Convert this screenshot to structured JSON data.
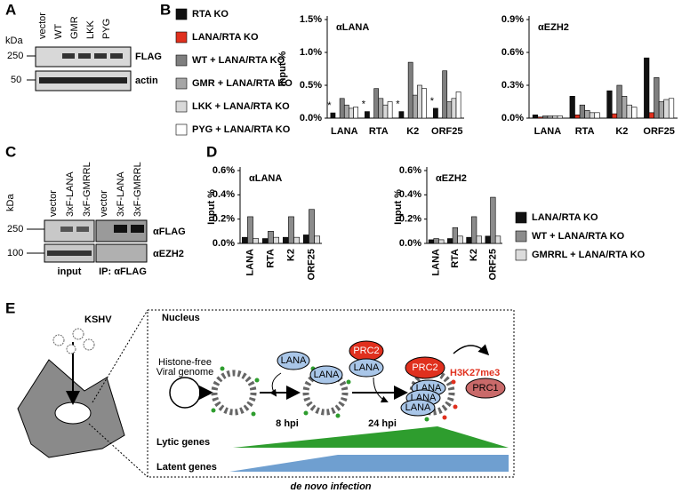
{
  "panel_labels": [
    "A",
    "B",
    "C",
    "D",
    "E"
  ],
  "panel_a": {
    "kda": "kDa",
    "lanes": [
      "vector",
      "WT",
      "GMR",
      "LKK",
      "PYG"
    ],
    "markers": [
      "250",
      "50"
    ],
    "blots": [
      "FLAG",
      "actin"
    ]
  },
  "panel_c": {
    "kda": "kDa",
    "lanes": [
      "vector",
      "3xF-LANA",
      "3xF-GMRRL",
      "vector",
      "3xF-LANA",
      "3xF-GMRRL"
    ],
    "markers": [
      "250",
      "100"
    ],
    "blots": [
      "αFLAG",
      "αEZH2"
    ],
    "groups": [
      "input",
      "IP: αFLAG"
    ]
  },
  "chart_data": [
    {
      "type": "bar",
      "title": "αLANA",
      "y_label": "Input %",
      "categories": [
        "LANA",
        "RTA",
        "K2",
        "ORF25"
      ],
      "series": [
        {
          "name": "RTA KO",
          "color": "#111111",
          "values": [
            0.08,
            0.1,
            0.1,
            0.15
          ]
        },
        {
          "name": "LANA/RTA KO",
          "color": "#e0301e",
          "values": [
            0.0,
            0.0,
            0.0,
            0.0
          ]
        },
        {
          "name": "WT + LANA/RTA KO",
          "color": "#7f7f7f",
          "values": [
            0.3,
            0.45,
            0.85,
            0.72
          ]
        },
        {
          "name": "GMR + LANA/RTA KO",
          "color": "#a6a6a6",
          "values": [
            0.2,
            0.3,
            0.35,
            0.25
          ]
        },
        {
          "name": "LKK + LANA/RTA KO",
          "color": "#d9d9d9",
          "values": [
            0.15,
            0.2,
            0.5,
            0.3
          ]
        },
        {
          "name": "PYG + LANA/RTA KO",
          "color": "#ffffff",
          "values": [
            0.17,
            0.25,
            0.45,
            0.4
          ]
        }
      ],
      "ylim": [
        0,
        1.5
      ],
      "yticks": [
        {
          "value": 0,
          "label": "0.0%"
        },
        {
          "value": 0.5,
          "label": "0.5%"
        },
        {
          "value": 1.0,
          "label": "1.0%"
        },
        {
          "value": 1.5,
          "label": "1.5%"
        }
      ],
      "annotations": [
        "*",
        "*",
        "*",
        "*"
      ]
    },
    {
      "type": "bar",
      "title": "αEZH2",
      "categories": [
        "LANA",
        "RTA",
        "K2",
        "ORF25"
      ],
      "series": [
        {
          "color": "#111111",
          "values": [
            0.03,
            0.2,
            0.25,
            0.55
          ]
        },
        {
          "color": "#e0301e",
          "values": [
            0.01,
            0.03,
            0.04,
            0.05
          ]
        },
        {
          "color": "#7f7f7f",
          "values": [
            0.02,
            0.12,
            0.3,
            0.37
          ]
        },
        {
          "color": "#a6a6a6",
          "values": [
            0.02,
            0.07,
            0.2,
            0.15
          ]
        },
        {
          "color": "#d9d9d9",
          "values": [
            0.02,
            0.05,
            0.12,
            0.17
          ]
        },
        {
          "color": "#ffffff",
          "values": [
            0.02,
            0.05,
            0.1,
            0.18
          ]
        }
      ],
      "ylim": [
        0,
        0.9
      ],
      "yticks": [
        {
          "value": 0,
          "label": "0.0%"
        },
        {
          "value": 0.3,
          "label": "0.3%"
        },
        {
          "value": 0.6,
          "label": "0.6%"
        },
        {
          "value": 0.9,
          "label": "0.9%"
        }
      ]
    },
    {
      "type": "bar",
      "title": "αLANA",
      "y_label": "Input %",
      "categories": [
        "LANA",
        "RTA",
        "K2",
        "ORF25"
      ],
      "series": [
        {
          "name": "LANA/RTA KO",
          "color": "#111111",
          "values": [
            0.05,
            0.04,
            0.05,
            0.07
          ]
        },
        {
          "name": "WT + LANA/RTA KO",
          "color": "#8c8c8c",
          "values": [
            0.22,
            0.1,
            0.22,
            0.28
          ]
        },
        {
          "name": "GMRRL + LANA/RTA KO",
          "color": "#dcdcdc",
          "values": [
            0.04,
            0.05,
            0.05,
            0.06
          ]
        }
      ],
      "ylim": [
        0,
        0.6
      ],
      "yticks": [
        {
          "value": 0,
          "label": "0.0%"
        },
        {
          "value": 0.2,
          "label": "0.2%"
        },
        {
          "value": 0.4,
          "label": "0.4%"
        },
        {
          "value": 0.6,
          "label": "0.6%"
        }
      ]
    },
    {
      "type": "bar",
      "title": "αEZH2",
      "y_label": "Input %",
      "categories": [
        "LANA",
        "RTA",
        "K2",
        "ORF25"
      ],
      "series": [
        {
          "color": "#111111",
          "values": [
            0.03,
            0.04,
            0.05,
            0.06
          ]
        },
        {
          "color": "#8c8c8c",
          "values": [
            0.04,
            0.13,
            0.22,
            0.38
          ]
        },
        {
          "color": "#dcdcdc",
          "values": [
            0.03,
            0.06,
            0.06,
            0.06
          ]
        }
      ],
      "ylim": [
        0,
        0.6
      ],
      "yticks": [
        {
          "value": 0,
          "label": "0.0%"
        },
        {
          "value": 0.2,
          "label": "0.2%"
        },
        {
          "value": 0.4,
          "label": "0.4%"
        },
        {
          "value": 0.6,
          "label": "0.6%"
        }
      ]
    }
  ],
  "panel_e": {
    "virus": "KSHV",
    "compartment": "Nucleus",
    "genome": [
      "Histone-free",
      "Viral genome"
    ],
    "proteins": [
      "LANA",
      "LANA",
      "PRC2",
      "LANA",
      "PRC2",
      "LANA",
      "LANA",
      "LANA",
      "PRC1"
    ],
    "mark": "H3K27me3",
    "times": [
      "8 hpi",
      "24 hpi"
    ],
    "genes": [
      "Lytic genes",
      "Latent genes"
    ],
    "caption": "de novo infection"
  }
}
